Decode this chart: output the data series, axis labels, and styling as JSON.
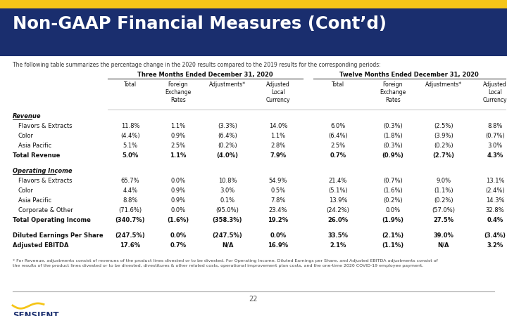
{
  "title": "Non-GAAP Financial Measures (Cont’d)",
  "title_bg": "#1a2e6e",
  "title_color": "#ffffff",
  "accent_bar_color": "#f5c518",
  "subtitle": "The following table summarizes the percentage change in the 2020 results compared to the 2019 results for the corresponding periods:",
  "col_group1_label": "Three Months Ended December 31, 2020",
  "col_group2_label": "Twelve Months Ended December 31, 2020",
  "col_labels": [
    "Total",
    "Foreign\nExchange\nRates",
    "Adjustments*",
    "Adjusted\nLocal\nCurrency",
    "Total",
    "Foreign\nExchange\nRates",
    "Adjustments*",
    "Adjusted\nLocal\nCurrency"
  ],
  "sections": [
    {
      "section_label": "Revenue",
      "rows": [
        {
          "label": "Flavors & Extracts",
          "bold": false,
          "values": [
            "11.8%",
            "1.1%",
            "(3.3%)",
            "14.0%",
            "6.0%",
            "(0.3%)",
            "(2.5%)",
            "8.8%"
          ]
        },
        {
          "label": "Color",
          "bold": false,
          "values": [
            "(4.4%)",
            "0.9%",
            "(6.4%)",
            "1.1%",
            "(6.4%)",
            "(1.8%)",
            "(3.9%)",
            "(0.7%)"
          ]
        },
        {
          "label": "Asia Pacific",
          "bold": false,
          "values": [
            "5.1%",
            "2.5%",
            "(0.2%)",
            "2.8%",
            "2.5%",
            "(0.3%)",
            "(0.2%)",
            "3.0%"
          ]
        },
        {
          "label": "Total Revenue",
          "bold": true,
          "values": [
            "5.0%",
            "1.1%",
            "(4.0%)",
            "7.9%",
            "0.7%",
            "(0.9%)",
            "(2.7%)",
            "4.3%"
          ]
        }
      ]
    },
    {
      "section_label": "Operating Income",
      "rows": [
        {
          "label": "Flavors & Extracts",
          "bold": false,
          "values": [
            "65.7%",
            "0.0%",
            "10.8%",
            "54.9%",
            "21.4%",
            "(0.7%)",
            "9.0%",
            "13.1%"
          ]
        },
        {
          "label": "Color",
          "bold": false,
          "values": [
            "4.4%",
            "0.9%",
            "3.0%",
            "0.5%",
            "(5.1%)",
            "(1.6%)",
            "(1.1%)",
            "(2.4%)"
          ]
        },
        {
          "label": "Asia Pacific",
          "bold": false,
          "values": [
            "8.8%",
            "0.9%",
            "0.1%",
            "7.8%",
            "13.9%",
            "(0.2%)",
            "(0.2%)",
            "14.3%"
          ]
        },
        {
          "label": "Corporate & Other",
          "bold": false,
          "values": [
            "(71.6%)",
            "0.0%",
            "(95.0%)",
            "23.4%",
            "(24.2%)",
            "0.0%",
            "(57.0%)",
            "32.8%"
          ]
        },
        {
          "label": "Total Operating Income",
          "bold": true,
          "values": [
            "(340.7%)",
            "(1.6%)",
            "(358.3%)",
            "19.2%",
            "26.0%",
            "(1.9%)",
            "27.5%",
            "0.4%"
          ]
        }
      ]
    },
    {
      "section_label": "",
      "rows": [
        {
          "label": "Diluted Earnings Per Share",
          "bold": true,
          "values": [
            "(247.5%)",
            "0.0%",
            "(247.5%)",
            "0.0%",
            "33.5%",
            "(2.1%)",
            "39.0%",
            "(3.4%)"
          ]
        },
        {
          "label": "Adjusted EBITDA",
          "bold": true,
          "values": [
            "17.6%",
            "0.7%",
            "N/A",
            "16.9%",
            "2.1%",
            "(1.1%)",
            "N/A",
            "3.2%"
          ]
        }
      ]
    }
  ],
  "footnote": "* For Revenue, adjustments consist of revenues of the product lines divested or to be divested. For Operating Income, Diluted Earnings per Share, and Adjusted EBITDA adjustments consist of\nthe results of the product lines divested or to be divested, divestitures & other related costs, operational improvement plan costs, and the one-time 2020 COVID-19 employee payment.",
  "page_number": "22",
  "bg_color": "#ffffff",
  "sensient_color": "#1a2e6e",
  "sensient_wave_color": "#f5c518"
}
